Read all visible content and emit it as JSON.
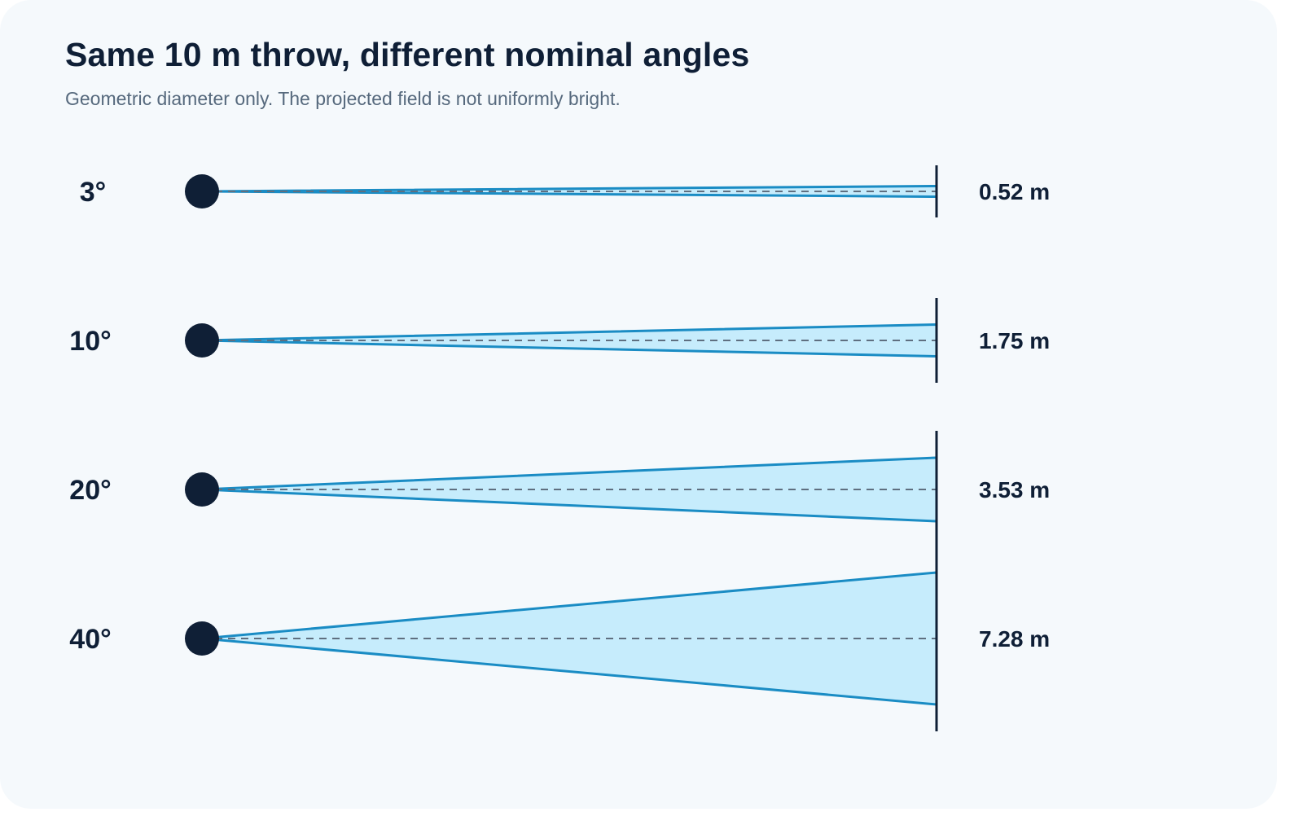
{
  "title": "Same 10 m throw, different nominal angles",
  "subtitle": "Geometric diameter only. The projected field is not uniformly bright.",
  "colors": {
    "background": "#f5f9fc",
    "text": "#0f1f36",
    "subtitle": "#56697d",
    "beam_fill": "#c6ecfc",
    "beam_stroke": "#1a8cc4",
    "axis_dash": "#5f6f80",
    "source": "#0f1f36"
  },
  "rows": [
    {
      "angle_label": "3°",
      "angle_deg": 3,
      "diameter_label": "0.52 m",
      "diameter_m": 0.52
    },
    {
      "angle_label": "10°",
      "angle_deg": 10,
      "diameter_label": "1.75 m",
      "diameter_m": 1.75
    },
    {
      "angle_label": "20°",
      "angle_deg": 20,
      "diameter_label": "3.53 m",
      "diameter_m": 3.53
    },
    {
      "angle_label": "40°",
      "angle_deg": 40,
      "diameter_label": "7.28 m",
      "diameter_m": 7.28
    }
  ]
}
